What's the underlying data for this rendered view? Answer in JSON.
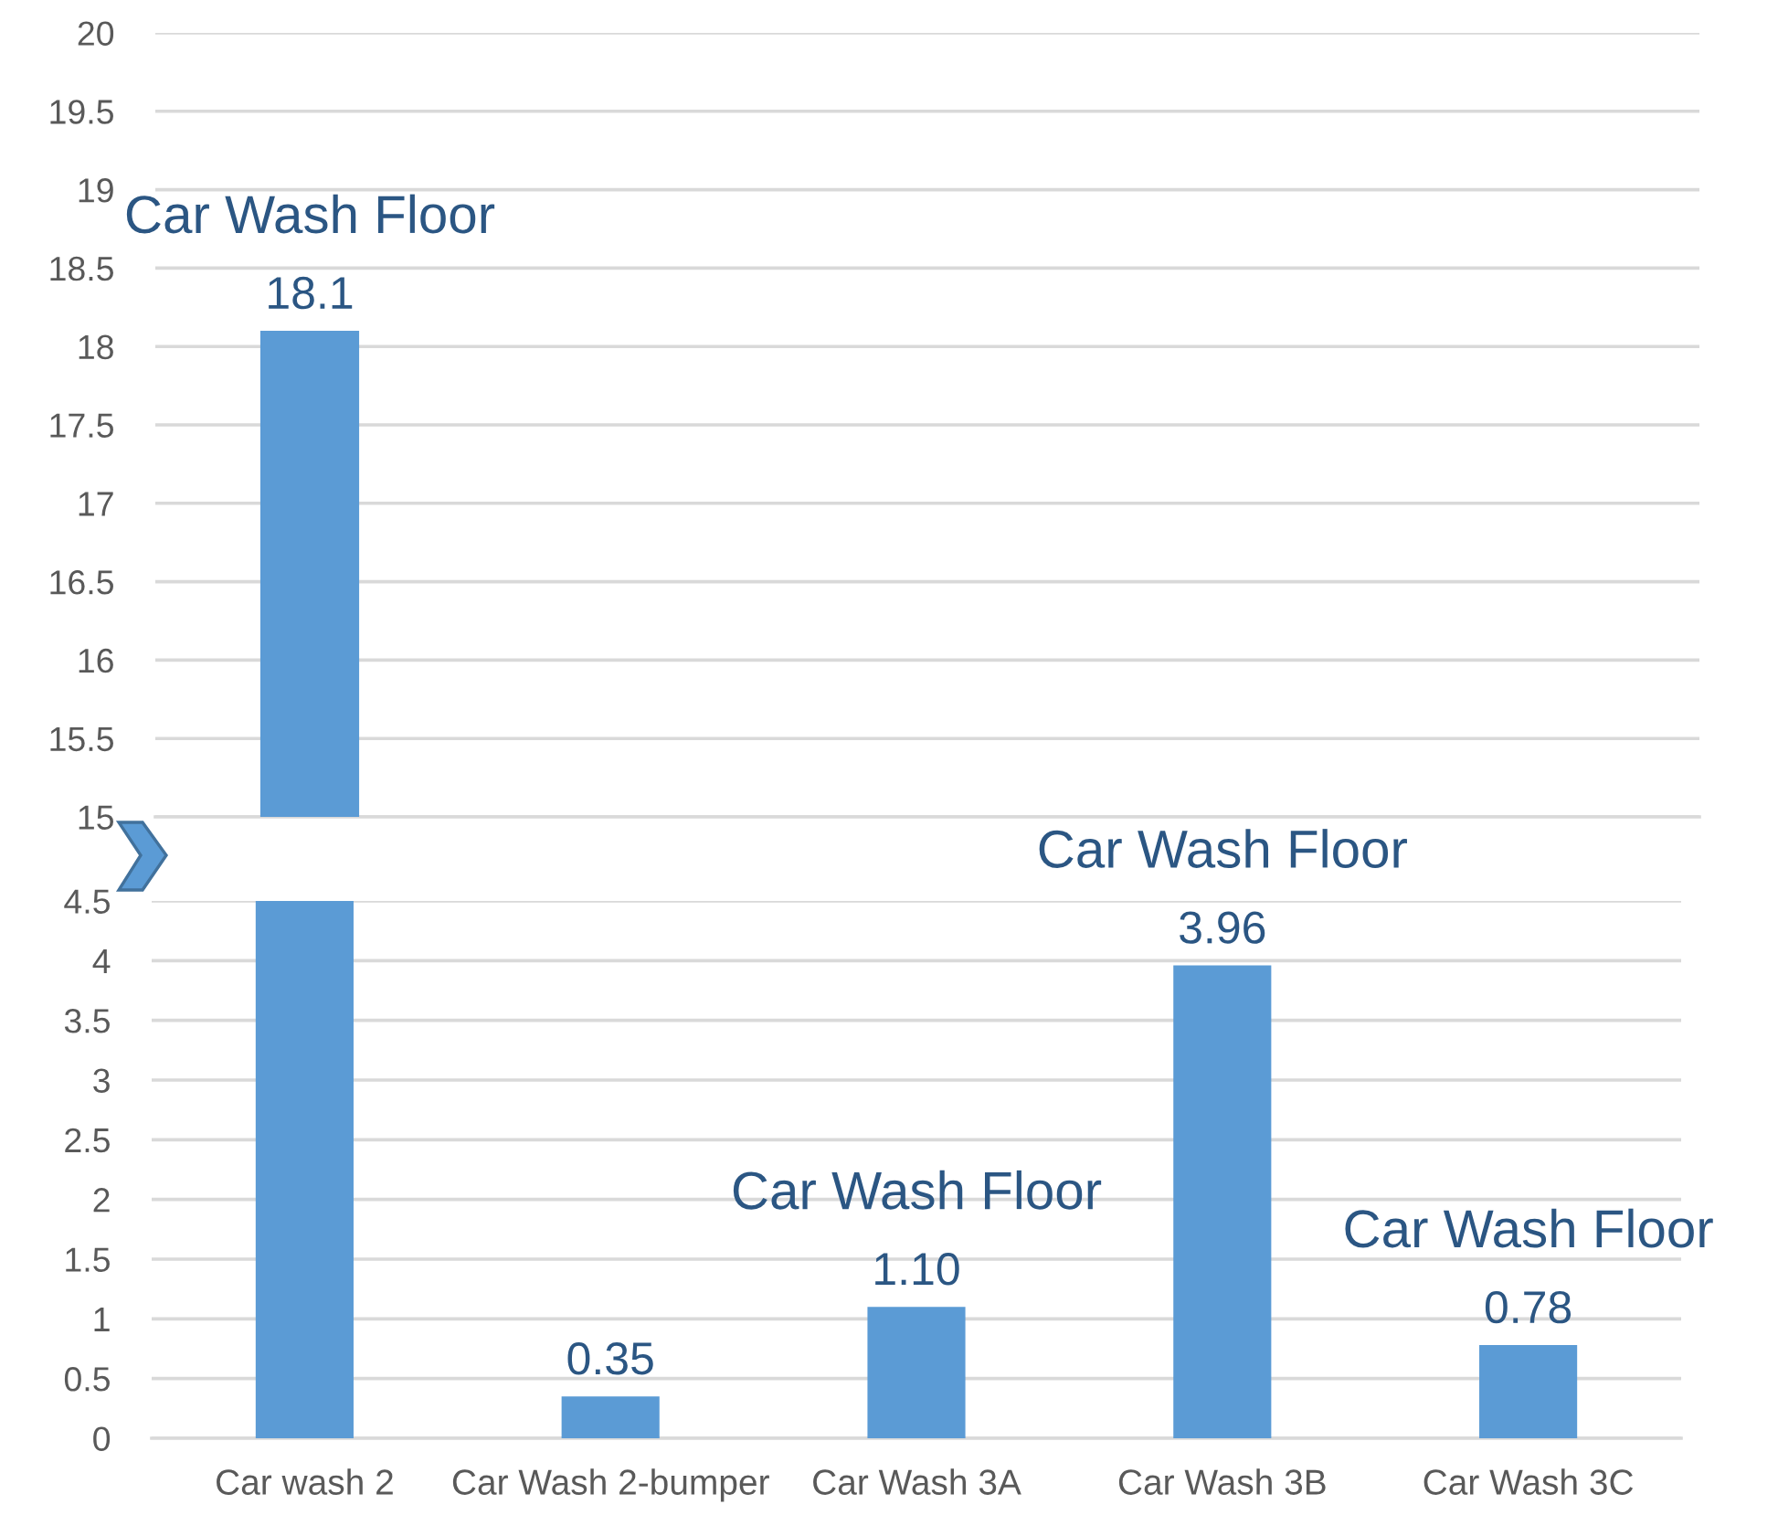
{
  "chart_data": [
    {
      "type": "bar",
      "categories": [
        "Car wash 2",
        "Car Wash 2-bumper",
        "Car Wash 3A",
        "Car Wash 3B",
        "Car Wash 3C"
      ],
      "values": [
        18.1,
        null,
        null,
        null,
        null
      ],
      "value_labels": [
        "18.1",
        null,
        null,
        null,
        null
      ],
      "color": "#5b9bd5",
      "ylim": [
        15,
        20
      ],
      "yticks": [
        15,
        15.5,
        16,
        16.5,
        17,
        17.5,
        18,
        18.5,
        19,
        19.5,
        20
      ],
      "grid": "y",
      "tick_labels": "y",
      "annotations": [
        {
          "text": "Car Wash Floor",
          "x": "Car wash 2",
          "y": 18.1
        }
      ]
    },
    {
      "type": "bar",
      "categories": [
        "Car wash 2",
        "Car Wash 2-bumper",
        "Car Wash 3A",
        "Car Wash 3B",
        "Car Wash 3C"
      ],
      "values": [
        4.5,
        0.35,
        1.1,
        3.96,
        0.78
      ],
      "value_labels": [
        null,
        "0.35",
        "1.10",
        "3.96",
        "0.78"
      ],
      "color": "#5b9bd5",
      "ylim": [
        0,
        4.5
      ],
      "yticks": [
        0,
        0.5,
        1,
        1.5,
        2,
        2.5,
        3,
        3.5,
        4,
        4.5
      ],
      "grid": "y",
      "annotations": [
        {
          "text": "Car Wash Floor",
          "x": "Car Wash 3A",
          "y": 1.1
        },
        {
          "text": "Car Wash Floor",
          "x": "Car Wash 3B",
          "y": 3.96
        },
        {
          "text": "Car Wash Floor",
          "x": "Car Wash 3C",
          "y": 0.78
        }
      ]
    }
  ]
}
